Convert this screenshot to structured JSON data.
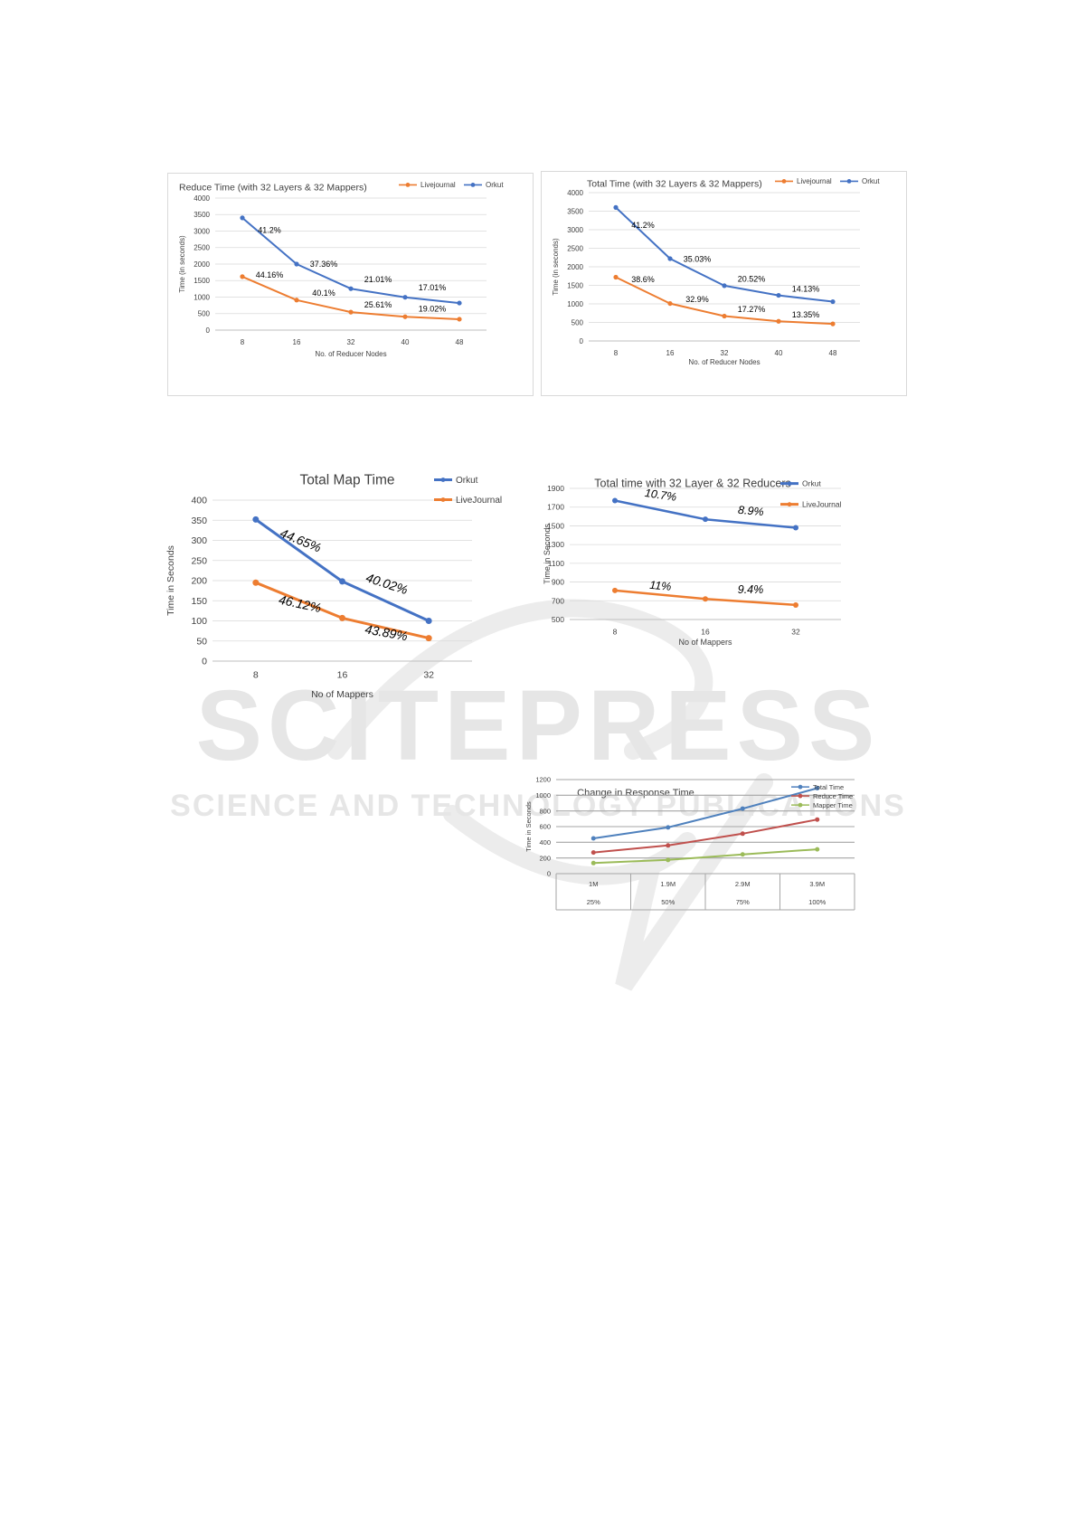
{
  "watermark": {
    "brand": "SCITEPRESS",
    "tagline": "SCIENCE AND TECHNOLOGY PUBLICATIONS"
  },
  "chart_data": [
    {
      "id": "reduce-time",
      "type": "line",
      "title": "Reduce Time (with 32 Layers & 32 Mappers)",
      "xlabel": "No. of Reducer Nodes",
      "ylabel": "Time (in seconds)",
      "categories": [
        "8",
        "16",
        "32",
        "40",
        "48"
      ],
      "ylim": [
        0,
        4000
      ],
      "yticks": [
        0,
        500,
        1000,
        1500,
        2000,
        2500,
        3000,
        3500,
        4000
      ],
      "grid": true,
      "legend_position": "top-right",
      "series": [
        {
          "name": "Livejournal",
          "color": "#ed7d31",
          "values": [
            1620,
            910,
            545,
            405,
            330
          ]
        },
        {
          "name": "Orkut",
          "color": "#4472c4",
          "values": [
            3400,
            2000,
            1255,
            995,
            820
          ]
        }
      ],
      "annotations": [
        {
          "text": "41.2%",
          "x": "8",
          "y": 2950,
          "series": "Orkut"
        },
        {
          "text": "37.36%",
          "x": "16",
          "y": 1920,
          "series": "Orkut"
        },
        {
          "text": "21.01%",
          "x": "32",
          "y": 1450,
          "series": "Orkut"
        },
        {
          "text": "17.01%",
          "x": "40",
          "y": 1200,
          "series": "Orkut"
        },
        {
          "text": "44.16%",
          "x": "8",
          "y": 1590,
          "series": "Livejournal"
        },
        {
          "text": "40.1%",
          "x": "16",
          "y": 1040,
          "series": "Livejournal"
        },
        {
          "text": "25.61%",
          "x": "32",
          "y": 680,
          "series": "Livejournal"
        },
        {
          "text": "19.02%",
          "x": "40",
          "y": 560,
          "series": "Livejournal"
        }
      ]
    },
    {
      "id": "total-time-reducers",
      "type": "line",
      "title": "Total Time (with 32 Layers & 32 Mappers)",
      "xlabel": "No. of Reducer Nodes",
      "ylabel": "Time (in seconds)",
      "categories": [
        "8",
        "16",
        "32",
        "40",
        "48"
      ],
      "ylim": [
        0,
        4000
      ],
      "yticks": [
        0,
        500,
        1000,
        1500,
        2000,
        2500,
        3000,
        3500,
        4000
      ],
      "grid": true,
      "legend_position": "top-right",
      "series": [
        {
          "name": "Livejournal",
          "color": "#ed7d31",
          "values": [
            1720,
            1010,
            670,
            530,
            460
          ]
        },
        {
          "name": "Orkut",
          "color": "#4472c4",
          "values": [
            3600,
            2220,
            1490,
            1230,
            1060
          ]
        }
      ],
      "annotations": [
        {
          "text": "41.2%",
          "x": "8",
          "y": 3050,
          "series": "Orkut"
        },
        {
          "text": "35.03%",
          "x": "16",
          "y": 2130,
          "series": "Orkut"
        },
        {
          "text": "20.52%",
          "x": "32",
          "y": 1600,
          "series": "Orkut"
        },
        {
          "text": "14.13%",
          "x": "40",
          "y": 1330,
          "series": "Orkut"
        },
        {
          "text": "38.6%",
          "x": "8",
          "y": 1580,
          "series": "Livejournal"
        },
        {
          "text": "32.9%",
          "x": "16",
          "y": 1050,
          "series": "Livejournal"
        },
        {
          "text": "17.27%",
          "x": "32",
          "y": 780,
          "series": "Livejournal"
        },
        {
          "text": "13.35%",
          "x": "40",
          "y": 630,
          "series": "Livejournal"
        }
      ]
    },
    {
      "id": "total-map-time",
      "type": "line",
      "title": "Total Map Time",
      "xlabel": "No of Mappers",
      "ylabel": "Time in Seconds",
      "categories": [
        "8",
        "16",
        "32"
      ],
      "ylim": [
        0,
        400
      ],
      "yticks": [
        0,
        50,
        100,
        150,
        200,
        250,
        300,
        350,
        400
      ],
      "grid": true,
      "legend_position": "top-right",
      "series": [
        {
          "name": "Orkut",
          "color": "#4472c4",
          "values": [
            352,
            198,
            100
          ]
        },
        {
          "name": "LiveJournal",
          "color": "#ed7d31",
          "values": [
            195,
            107,
            57
          ]
        }
      ],
      "annotations": [
        {
          "text": "44.65%",
          "x": "8",
          "y": 290,
          "series": "Orkut",
          "rotate": 22
        },
        {
          "text": "40.02%",
          "x": "16",
          "y": 182,
          "series": "Orkut",
          "rotate": 18
        },
        {
          "text": "46.12%",
          "x": "8",
          "y": 132,
          "series": "LiveJournal",
          "rotate": 12
        },
        {
          "text": "43.89%",
          "x": "16",
          "y": 60,
          "series": "LiveJournal",
          "rotate": 10
        }
      ]
    },
    {
      "id": "total-time-mappers",
      "type": "line",
      "title": "Total time with 32 Layer & 32 Reducers",
      "xlabel": "No of Mappers",
      "ylabel": "Time in Seconds",
      "categories": [
        "8",
        "16",
        "32"
      ],
      "ylim": [
        500,
        1900
      ],
      "yticks": [
        500,
        700,
        900,
        1100,
        1300,
        1500,
        1700,
        1900
      ],
      "grid": true,
      "legend_position": "top-right",
      "series": [
        {
          "name": "Orkut",
          "color": "#4472c4",
          "values": [
            1770,
            1570,
            1480
          ]
        },
        {
          "name": "LiveJournal",
          "color": "#ed7d31",
          "values": [
            810,
            720,
            655
          ]
        }
      ],
      "annotations": [
        {
          "text": "10.7%",
          "x": "8",
          "y": 1790,
          "series": "Orkut",
          "rotate": 8
        },
        {
          "text": "8.9%",
          "x": "16",
          "y": 1620,
          "series": "Orkut",
          "rotate": 5
        },
        {
          "text": "11%",
          "x": "8",
          "y": 820,
          "series": "LiveJournal",
          "rotate": 5
        },
        {
          "text": "9.4%",
          "x": "16",
          "y": 780,
          "series": "LiveJournal",
          "rotate": 0
        }
      ]
    },
    {
      "id": "change-response-time",
      "type": "line",
      "title": "Change in Response Time",
      "xlabel": "",
      "ylabel": "Time in Seconds",
      "categories": [
        "1M",
        "1.9M",
        "2.9M",
        "3.9M"
      ],
      "subcategories": [
        "25%",
        "50%",
        "75%",
        "100%"
      ],
      "ylim": [
        0,
        1200
      ],
      "yticks": [
        0,
        200,
        400,
        600,
        800,
        1000,
        1200
      ],
      "grid": true,
      "legend_position": "top-right",
      "series": [
        {
          "name": "Total Time",
          "color": "#4f81bd",
          "values": [
            450,
            590,
            830,
            1090
          ]
        },
        {
          "name": "Reduce Time",
          "color": "#c0504d",
          "values": [
            270,
            360,
            510,
            690
          ]
        },
        {
          "name": "Mapper Time",
          "color": "#9bbb59",
          "values": [
            135,
            175,
            245,
            310
          ]
        }
      ],
      "annotations": []
    }
  ]
}
